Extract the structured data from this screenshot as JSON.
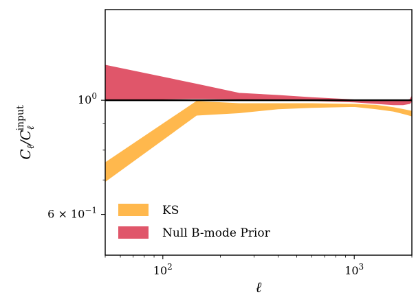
{
  "chart_data": {
    "type": "area",
    "xscale": "log",
    "yscale": "log",
    "xlim": [
      50,
      2000
    ],
    "ylim": [
      0.5,
      1.5
    ],
    "xlabel": "ℓ",
    "ylabel": "C_ℓ / C_ℓ^input",
    "ylabel_parts": {
      "main": "Cℓ/C",
      "sub": "ℓ",
      "sup": "input"
    },
    "grid": false,
    "legend_position": "lower-left",
    "x_ticks": [
      {
        "value": 100,
        "base": "10",
        "exp": "2"
      },
      {
        "value": 1000,
        "base": "10",
        "exp": "3"
      }
    ],
    "y_ticks": [
      {
        "value": 1.0,
        "base": "10",
        "exp": "0",
        "mantissa": ""
      },
      {
        "value": 0.6,
        "base": "10",
        "exp": "−1",
        "mantissa": "6 × "
      }
    ],
    "reference_line": {
      "y": 1.0,
      "color": "#000000"
    },
    "series": [
      {
        "name": "KS",
        "color": "#ffb84d",
        "x": [
          50,
          150,
          250,
          400,
          600,
          1000,
          1300,
          1600,
          1800,
          2000
        ],
        "lower": [
          0.695,
          0.935,
          0.945,
          0.962,
          0.968,
          0.972,
          0.962,
          0.952,
          0.942,
          0.932
        ],
        "upper": [
          0.756,
          0.995,
          0.985,
          0.985,
          0.985,
          0.982,
          0.978,
          0.968,
          0.96,
          0.952
        ]
      },
      {
        "name": "Null B-mode Prior",
        "color": "#e0566a",
        "x": [
          50,
          150,
          250,
          400,
          600,
          1000,
          1300,
          1600,
          1800,
          1950,
          2000
        ],
        "lower": [
          1.0,
          1.008,
          1.005,
          1.003,
          0.998,
          0.992,
          0.985,
          0.98,
          0.98,
          0.985,
          0.995
        ],
        "upper": [
          1.17,
          1.075,
          1.032,
          1.022,
          1.012,
          1.002,
          0.997,
          0.995,
          0.998,
          1.003,
          1.018
        ]
      }
    ]
  }
}
